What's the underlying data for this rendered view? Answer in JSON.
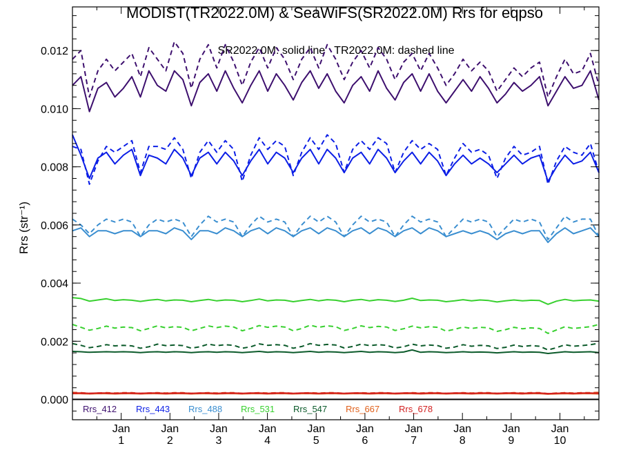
{
  "chart_data": {
    "type": "line",
    "title": "MODIST(TR2022.0M) & SeaWiFS(SR2022.0M)  Rrs for eqpso",
    "subtitle": "SR2022.0M: solid line   TR2022.0M: dashed line",
    "ylabel": "Rrs (str⁻¹)",
    "xlabel": "",
    "ylim": [
      -0.0007,
      0.0135
    ],
    "y_ticks": [
      "0.000",
      "0.002",
      "0.004",
      "0.006",
      "0.008",
      "0.010",
      "0.012"
    ],
    "x_ticks": [
      {
        "top": "Jan",
        "bottom": "1"
      },
      {
        "top": "Jan",
        "bottom": "2"
      },
      {
        "top": "Jan",
        "bottom": "3"
      },
      {
        "top": "Jan",
        "bottom": "4"
      },
      {
        "top": "Jan",
        "bottom": "5"
      },
      {
        "top": "Jan",
        "bottom": "6"
      },
      {
        "top": "Jan",
        "bottom": "7"
      },
      {
        "top": "Jan",
        "bottom": "8"
      },
      {
        "top": "Jan",
        "bottom": "9"
      },
      {
        "top": "Jan",
        "bottom": "10"
      }
    ],
    "x_range": [
      0,
      10.8
    ],
    "grid": false,
    "legend_position": "bottom-left",
    "series": [
      {
        "name": "Rrs_412",
        "color": "#3d0f6e",
        "solid": [
          0.0108,
          0.0111,
          0.0099,
          0.0107,
          0.0109,
          0.0104,
          0.0107,
          0.0111,
          0.0104,
          0.0113,
          0.0108,
          0.0106,
          0.0113,
          0.011,
          0.0101,
          0.0109,
          0.0112,
          0.0106,
          0.0113,
          0.0107,
          0.0102,
          0.0108,
          0.0113,
          0.0106,
          0.0112,
          0.0108,
          0.0103,
          0.0109,
          0.0113,
          0.0107,
          0.0112,
          0.0106,
          0.0102,
          0.0108,
          0.0111,
          0.0106,
          0.0113,
          0.0107,
          0.0103,
          0.0109,
          0.0112,
          0.0106,
          0.0112,
          0.0106,
          0.0102,
          0.0106,
          0.011,
          0.0106,
          0.0111,
          0.0107,
          0.0102,
          0.0105,
          0.0109,
          0.0106,
          0.0108,
          0.0111,
          0.0101,
          0.0106,
          0.0111,
          0.0107,
          0.0108,
          0.0113,
          0.0103
        ],
        "dashed": [
          0.0117,
          0.012,
          0.0104,
          0.0113,
          0.0117,
          0.0113,
          0.0116,
          0.0119,
          0.0111,
          0.0121,
          0.0117,
          0.0113,
          0.0123,
          0.0119,
          0.0107,
          0.0117,
          0.0122,
          0.0114,
          0.0122,
          0.0116,
          0.0108,
          0.0116,
          0.0121,
          0.0114,
          0.0121,
          0.0117,
          0.011,
          0.0117,
          0.0121,
          0.0114,
          0.0122,
          0.0117,
          0.011,
          0.0116,
          0.012,
          0.0114,
          0.0121,
          0.0117,
          0.011,
          0.0116,
          0.0119,
          0.0113,
          0.0119,
          0.0114,
          0.0108,
          0.0112,
          0.0117,
          0.0113,
          0.0116,
          0.0113,
          0.0106,
          0.011,
          0.0114,
          0.0111,
          0.0114,
          0.0116,
          0.0104,
          0.0111,
          0.0117,
          0.0112,
          0.0113,
          0.0119,
          0.0108
        ]
      },
      {
        "name": "Rrs_443",
        "color": "#0b1ee6",
        "solid": [
          0.0091,
          0.0084,
          0.0076,
          0.0083,
          0.0085,
          0.0081,
          0.0084,
          0.0086,
          0.0077,
          0.0084,
          0.0083,
          0.0081,
          0.0086,
          0.0083,
          0.0077,
          0.0083,
          0.0085,
          0.0081,
          0.0085,
          0.0082,
          0.0077,
          0.0082,
          0.0086,
          0.0081,
          0.0085,
          0.0083,
          0.0078,
          0.0083,
          0.0086,
          0.0081,
          0.0086,
          0.0083,
          0.0078,
          0.0083,
          0.0085,
          0.0081,
          0.0086,
          0.0083,
          0.0078,
          0.0082,
          0.0085,
          0.0081,
          0.0085,
          0.0082,
          0.0077,
          0.0081,
          0.0084,
          0.0081,
          0.0083,
          0.0081,
          0.0078,
          0.0081,
          0.0084,
          0.0081,
          0.0083,
          0.0084,
          0.0075,
          0.008,
          0.0084,
          0.0081,
          0.0082,
          0.0085,
          0.0078
        ],
        "dashed": [
          0.0087,
          0.0086,
          0.0074,
          0.0082,
          0.0087,
          0.0085,
          0.0087,
          0.0089,
          0.0078,
          0.0087,
          0.0087,
          0.0086,
          0.009,
          0.0086,
          0.0076,
          0.0085,
          0.0089,
          0.0085,
          0.0089,
          0.0086,
          0.0075,
          0.0084,
          0.009,
          0.0086,
          0.0089,
          0.0087,
          0.0077,
          0.0085,
          0.009,
          0.0086,
          0.0091,
          0.0088,
          0.0078,
          0.0086,
          0.0089,
          0.0086,
          0.009,
          0.0088,
          0.0078,
          0.0085,
          0.0089,
          0.0086,
          0.0088,
          0.0086,
          0.0077,
          0.0083,
          0.0088,
          0.0085,
          0.0086,
          0.0084,
          0.0076,
          0.0083,
          0.0087,
          0.0084,
          0.0085,
          0.0087,
          0.0074,
          0.0082,
          0.0087,
          0.0085,
          0.0084,
          0.0088,
          0.0078
        ]
      },
      {
        "name": "Rrs_488",
        "color": "#3a8ed0",
        "solid": [
          0.0058,
          0.0059,
          0.0056,
          0.0058,
          0.0058,
          0.0057,
          0.0058,
          0.0058,
          0.0056,
          0.0058,
          0.0058,
          0.0057,
          0.0059,
          0.0058,
          0.0055,
          0.0058,
          0.0058,
          0.0057,
          0.0059,
          0.0058,
          0.0056,
          0.0058,
          0.0059,
          0.0057,
          0.0059,
          0.0058,
          0.0056,
          0.0058,
          0.0059,
          0.0057,
          0.0059,
          0.0058,
          0.0056,
          0.0058,
          0.0059,
          0.0057,
          0.0059,
          0.0058,
          0.0056,
          0.0058,
          0.0059,
          0.0057,
          0.0059,
          0.0058,
          0.0056,
          0.0057,
          0.0058,
          0.0057,
          0.0058,
          0.0057,
          0.0055,
          0.0057,
          0.0058,
          0.0057,
          0.0058,
          0.0058,
          0.0054,
          0.0057,
          0.0059,
          0.0057,
          0.0058,
          0.0059,
          0.0056
        ],
        "dashed": [
          0.0062,
          0.006,
          0.0057,
          0.006,
          0.0062,
          0.0061,
          0.0062,
          0.0061,
          0.0056,
          0.006,
          0.0062,
          0.0061,
          0.0062,
          0.0061,
          0.0056,
          0.006,
          0.0063,
          0.0061,
          0.0062,
          0.0061,
          0.0056,
          0.006,
          0.0063,
          0.0061,
          0.0062,
          0.0061,
          0.0056,
          0.006,
          0.0063,
          0.0061,
          0.0063,
          0.0061,
          0.0056,
          0.006,
          0.0063,
          0.0061,
          0.0062,
          0.0061,
          0.0056,
          0.006,
          0.0063,
          0.0061,
          0.0062,
          0.0061,
          0.0056,
          0.0059,
          0.0062,
          0.0061,
          0.0062,
          0.0061,
          0.0056,
          0.0059,
          0.0062,
          0.0061,
          0.0062,
          0.0061,
          0.0055,
          0.0059,
          0.0063,
          0.0061,
          0.0062,
          0.0062,
          0.0056
        ]
      },
      {
        "name": "Rrs_531",
        "color": "#37d02e",
        "solid": [
          0.0035,
          0.00347,
          0.00338,
          0.00342,
          0.00346,
          0.0034,
          0.00343,
          0.00341,
          0.00337,
          0.00341,
          0.00344,
          0.00339,
          0.00342,
          0.00341,
          0.00336,
          0.0034,
          0.00344,
          0.00339,
          0.00342,
          0.00341,
          0.00336,
          0.0034,
          0.00345,
          0.00339,
          0.00342,
          0.00341,
          0.00336,
          0.0034,
          0.00344,
          0.00339,
          0.00343,
          0.00341,
          0.00336,
          0.00341,
          0.00344,
          0.00339,
          0.00343,
          0.00341,
          0.00337,
          0.00341,
          0.00348,
          0.0034,
          0.00342,
          0.00341,
          0.00336,
          0.00339,
          0.00343,
          0.00339,
          0.00342,
          0.0034,
          0.00335,
          0.00339,
          0.00342,
          0.00339,
          0.00341,
          0.0034,
          0.00327,
          0.00338,
          0.00344,
          0.00339,
          0.00341,
          0.00342,
          0.00338
        ],
        "dashed": [
          0.00258,
          0.00248,
          0.00238,
          0.00244,
          0.00252,
          0.00245,
          0.00249,
          0.00247,
          0.00236,
          0.00244,
          0.00253,
          0.00246,
          0.0025,
          0.00248,
          0.00236,
          0.00244,
          0.00253,
          0.00247,
          0.00252,
          0.00249,
          0.00236,
          0.00244,
          0.00254,
          0.00248,
          0.00252,
          0.00249,
          0.00236,
          0.00244,
          0.00255,
          0.00248,
          0.00253,
          0.0025,
          0.00237,
          0.00244,
          0.00253,
          0.00247,
          0.00251,
          0.00249,
          0.00237,
          0.00243,
          0.00252,
          0.00246,
          0.0025,
          0.00248,
          0.00235,
          0.00241,
          0.00249,
          0.00244,
          0.00248,
          0.00246,
          0.00234,
          0.0024,
          0.00248,
          0.00243,
          0.00246,
          0.00244,
          0.00227,
          0.00239,
          0.0025,
          0.00244,
          0.00247,
          0.0025,
          0.00258
        ]
      },
      {
        "name": "Rrs_547",
        "color": "#0b5a2a",
        "solid": [
          0.00165,
          0.00164,
          0.00162,
          0.00163,
          0.00164,
          0.00163,
          0.00164,
          0.00163,
          0.00161,
          0.00163,
          0.00164,
          0.00162,
          0.00164,
          0.00163,
          0.00161,
          0.00163,
          0.00164,
          0.00162,
          0.00164,
          0.00163,
          0.00161,
          0.00163,
          0.00165,
          0.00162,
          0.00164,
          0.00163,
          0.00161,
          0.00163,
          0.00165,
          0.00162,
          0.00164,
          0.00163,
          0.00161,
          0.00163,
          0.00165,
          0.00162,
          0.00164,
          0.00163,
          0.00161,
          0.00163,
          0.0017,
          0.00162,
          0.00164,
          0.00163,
          0.00161,
          0.00162,
          0.00164,
          0.00162,
          0.00163,
          0.00162,
          0.0016,
          0.00162,
          0.00164,
          0.00162,
          0.00163,
          0.00162,
          0.00158,
          0.00161,
          0.00164,
          0.00162,
          0.00163,
          0.00164,
          0.00161
        ],
        "dashed": [
          0.00192,
          0.00186,
          0.00178,
          0.00182,
          0.00188,
          0.00184,
          0.00186,
          0.00184,
          0.00176,
          0.00181,
          0.0019,
          0.00185,
          0.00187,
          0.00185,
          0.00176,
          0.00181,
          0.0019,
          0.00185,
          0.00188,
          0.00186,
          0.00176,
          0.00181,
          0.00191,
          0.00186,
          0.00188,
          0.00186,
          0.00176,
          0.00182,
          0.00192,
          0.00186,
          0.00189,
          0.00187,
          0.00177,
          0.00182,
          0.0019,
          0.00185,
          0.00188,
          0.00186,
          0.00177,
          0.00181,
          0.0019,
          0.00184,
          0.00187,
          0.00185,
          0.00176,
          0.0018,
          0.00188,
          0.00183,
          0.00186,
          0.00184,
          0.00175,
          0.00179,
          0.00187,
          0.00182,
          0.00185,
          0.00183,
          0.0017,
          0.00178,
          0.00188,
          0.00183,
          0.00185,
          0.00188,
          0.00193
        ]
      },
      {
        "name": "Rrs_667",
        "color": "#e0601a",
        "solid": [
          0.0002,
          0.0002,
          0.00019,
          0.0002,
          0.0002,
          0.00019,
          0.0002,
          0.0002,
          0.00019,
          0.0002,
          0.0002,
          0.00019,
          0.0002,
          0.0002,
          0.00019,
          0.0002,
          0.0002,
          0.00019,
          0.0002,
          0.0002,
          0.00019,
          0.0002,
          0.0002,
          0.00019,
          0.0002,
          0.0002,
          0.00019,
          0.0002,
          0.0002,
          0.00019,
          0.0002,
          0.0002,
          0.00019,
          0.0002,
          0.0002,
          0.00019,
          0.0002,
          0.0002,
          0.00019,
          0.0002,
          0.0002,
          0.00019,
          0.0002,
          0.0002,
          0.00019,
          0.0002,
          0.0002,
          0.00019,
          0.0002,
          0.0002,
          0.00019,
          0.0002,
          0.0002,
          0.00019,
          0.0002,
          0.0002,
          0.00018,
          0.00019,
          0.0002,
          0.00019,
          0.0002,
          0.0002,
          0.00019
        ],
        "dashed": [
          0.00024,
          0.00023,
          0.00021,
          0.00022,
          0.00023,
          0.00022,
          0.00023,
          0.00023,
          0.00021,
          0.00022,
          0.00023,
          0.00022,
          0.00023,
          0.00023,
          0.00021,
          0.00022,
          0.00023,
          0.00022,
          0.00023,
          0.00023,
          0.00021,
          0.00022,
          0.00023,
          0.00022,
          0.00023,
          0.00023,
          0.00021,
          0.00022,
          0.00023,
          0.00022,
          0.00023,
          0.00023,
          0.00021,
          0.00022,
          0.00023,
          0.00022,
          0.00023,
          0.00023,
          0.00021,
          0.00022,
          0.00023,
          0.00022,
          0.00023,
          0.00023,
          0.00021,
          0.00022,
          0.00023,
          0.00022,
          0.00023,
          0.00023,
          0.00021,
          0.00022,
          0.00023,
          0.00022,
          0.00023,
          0.00023,
          0.0002,
          0.00022,
          0.00023,
          0.00022,
          0.00023,
          0.00023,
          0.00024
        ]
      },
      {
        "name": "Rrs_678",
        "color": "#d22020",
        "solid": [
          0.00022,
          0.00022,
          0.00021,
          0.00022,
          0.00022,
          0.00021,
          0.00022,
          0.00022,
          0.00021,
          0.00022,
          0.00022,
          0.00021,
          0.00022,
          0.00022,
          0.00021,
          0.00022,
          0.00022,
          0.00021,
          0.00022,
          0.00022,
          0.00021,
          0.00022,
          0.00022,
          0.00021,
          0.00022,
          0.00022,
          0.00021,
          0.00022,
          0.00022,
          0.00021,
          0.00022,
          0.00022,
          0.00021,
          0.00022,
          0.00022,
          0.00021,
          0.00022,
          0.00022,
          0.00021,
          0.00022,
          0.00022,
          0.00021,
          0.00022,
          0.00022,
          0.00021,
          0.00022,
          0.00022,
          0.00021,
          0.00022,
          0.00022,
          0.00021,
          0.00022,
          0.00022,
          0.00021,
          0.00022,
          0.00022,
          0.0002,
          0.00021,
          0.00022,
          0.00021,
          0.00022,
          0.00022,
          0.00021
        ],
        "dashed": [
          0.00021,
          0.00021,
          0.0002,
          0.00021,
          0.00021,
          0.0002,
          0.00021,
          0.00021,
          0.0002,
          0.00021,
          0.00021,
          0.0002,
          0.00021,
          0.00021,
          0.0002,
          0.00021,
          0.00021,
          0.0002,
          0.00021,
          0.00021,
          0.0002,
          0.00021,
          0.00021,
          0.0002,
          0.00021,
          0.00021,
          0.0002,
          0.00021,
          0.00021,
          0.0002,
          0.00021,
          0.00021,
          0.0002,
          0.00021,
          0.00021,
          0.0002,
          0.00021,
          0.00021,
          0.0002,
          0.00021,
          0.00021,
          0.0002,
          0.00021,
          0.00021,
          0.0002,
          0.00021,
          0.00021,
          0.0002,
          0.00021,
          0.00021,
          0.0002,
          0.00021,
          0.00021,
          0.0002,
          0.00021,
          0.00021,
          0.00019,
          0.00021,
          0.00021,
          0.0002,
          0.00021,
          0.00021,
          0.00022
        ]
      }
    ]
  }
}
